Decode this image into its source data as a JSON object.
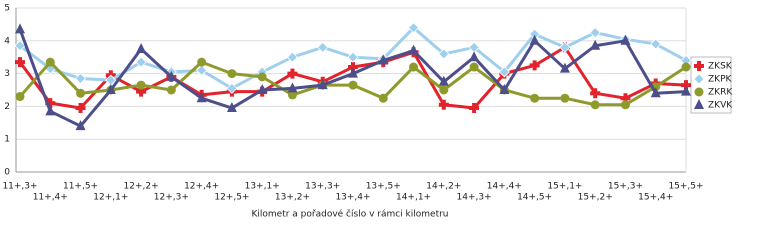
{
  "chart_data": {
    "type": "line",
    "x_label": "Kilometr a pořadové číslo v rámci kilometru",
    "categories": [
      "11+,3+",
      "11+,4+",
      "11+,5+",
      "12+,1+",
      "12+,2+",
      "12+,3+",
      "12+,4+",
      "12+,5+",
      "13+,1+",
      "13+,2+",
      "13+,3+",
      "13+,4+",
      "13+,5+",
      "14+,1+",
      "14+,2+",
      "14+,3+",
      "14+,4+",
      "14+,5+",
      "15+,1+",
      "15+,2+",
      "15+,3+",
      "15+,4+",
      "15+,5+"
    ],
    "series": [
      {
        "name": "ZKSK",
        "color": "#e3222b",
        "marker": "plus",
        "values": [
          3.35,
          2.1,
          1.95,
          2.95,
          2.45,
          2.9,
          2.35,
          2.45,
          2.45,
          3.0,
          2.75,
          3.2,
          3.35,
          3.65,
          2.05,
          1.95,
          3.0,
          3.25,
          3.8,
          2.4,
          2.25,
          2.7,
          2.65
        ]
      },
      {
        "name": "ZKPK",
        "color": "#9fcfee",
        "marker": "diamond",
        "values": [
          3.85,
          3.15,
          2.85,
          2.8,
          3.35,
          3.05,
          3.1,
          2.55,
          3.05,
          3.5,
          3.8,
          3.5,
          3.45,
          4.4,
          3.6,
          3.8,
          3.05,
          4.2,
          3.8,
          4.25,
          4.05,
          3.9,
          3.4
        ]
      },
      {
        "name": "ZKRK",
        "color": "#8f9a2c",
        "marker": "circle",
        "values": [
          2.3,
          3.35,
          2.4,
          2.5,
          2.65,
          2.5,
          3.35,
          3.0,
          2.9,
          2.35,
          2.65,
          2.65,
          2.25,
          3.2,
          2.5,
          3.2,
          2.5,
          2.25,
          2.25,
          2.05,
          2.05,
          2.6,
          3.2
        ]
      },
      {
        "name": "ZKVK",
        "color": "#4d4f8a",
        "marker": "triangle",
        "values": [
          4.35,
          1.85,
          1.4,
          2.5,
          3.75,
          2.9,
          2.25,
          1.95,
          2.5,
          2.55,
          2.65,
          3.0,
          3.4,
          3.7,
          2.75,
          3.5,
          2.5,
          4.0,
          3.15,
          3.85,
          4.0,
          2.4,
          2.45
        ]
      }
    ],
    "ylim": [
      0,
      5
    ],
    "yticks": [
      0,
      1,
      2,
      3,
      4,
      5
    ],
    "grid": true,
    "legend": "right"
  }
}
